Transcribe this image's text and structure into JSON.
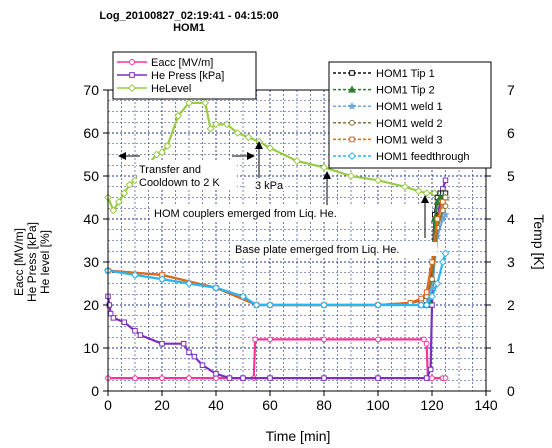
{
  "chart_data": {
    "type": "line",
    "title": "Log_20100827_02:19:41 - 04:15:00",
    "subtitle": "HOM1",
    "xlabel": "Time [min]",
    "ylabel_left": [
      "Eacc [MV/m]",
      "He Press [kPa]",
      "He level [%]"
    ],
    "ylabel_right": "Temp [K]",
    "xlim": [
      0,
      140
    ],
    "ylim_left": [
      0,
      70
    ],
    "ylim_right": [
      0,
      7
    ],
    "x_ticks": [
      "0",
      "20",
      "40",
      "60",
      "80",
      "100",
      "120",
      "140"
    ],
    "y_ticks_left": [
      "0",
      "10",
      "20",
      "30",
      "40",
      "50",
      "60",
      "70"
    ],
    "y_ticks_right": [
      "0",
      "1",
      "2",
      "3",
      "4",
      "5",
      "6",
      "7"
    ],
    "grid": true,
    "legend_left": {
      "placement": "top-left",
      "entries": [
        "Eacc [MV/m]",
        "He Press [kPa]",
        "HeLevel"
      ]
    },
    "legend_right": {
      "placement": "top-right",
      "entries": [
        "HOM1 Tip 1",
        "HOM1 Tip 2",
        "HOM1 weld 1",
        "HOM1 weld 2",
        "HOM1 weld 3",
        "HOM1 feedthrough"
      ]
    },
    "annotations": {
      "transfer": "Transfer and\nCooldown to 2 K",
      "press": "3 kPa",
      "couplers": "HOM couplers emerged from Liq. He.",
      "baseplate": "Base plate emerged from Liq. He."
    },
    "series": [
      {
        "name": "Eacc [MV/m]",
        "axis": "left",
        "color": "#ff3399",
        "marker": "circle",
        "x": [
          0,
          10,
          20,
          30,
          40,
          50,
          54,
          54.5,
          60,
          80,
          100,
          117,
          118,
          118.5,
          120,
          124,
          125
        ],
        "y": [
          3,
          3,
          3,
          3,
          3,
          3,
          3,
          12,
          12,
          12,
          12,
          12,
          11,
          3,
          3,
          3,
          3
        ]
      },
      {
        "name": "He Press [kPa]",
        "axis": "left",
        "color": "#7b2fbe",
        "marker": "square",
        "x": [
          0,
          0.5,
          1,
          2,
          6,
          10,
          12,
          20,
          28,
          30,
          32,
          35,
          40,
          45,
          50,
          60,
          80,
          100,
          118,
          119.5,
          120,
          121,
          122,
          123,
          124,
          125
        ],
        "y": [
          22,
          20,
          18,
          17,
          16,
          14,
          13,
          11,
          11,
          9,
          8,
          6,
          4,
          3,
          3,
          3,
          3,
          3,
          3,
          5,
          20,
          34,
          40,
          44,
          47,
          49
        ]
      },
      {
        "name": "HeLevel",
        "axis": "left",
        "color": "#99cc44",
        "marker": "diamond",
        "x": [
          0,
          2,
          4,
          6,
          8,
          10,
          14,
          18,
          20,
          22,
          26,
          30,
          36,
          38,
          40,
          44,
          48,
          52,
          56,
          60,
          70,
          80,
          90,
          100,
          110,
          115,
          118,
          121,
          124
        ],
        "y": [
          45,
          42,
          44,
          46,
          48,
          49,
          52,
          55,
          55.5,
          57,
          64,
          67,
          67,
          61,
          62,
          62,
          60,
          59,
          58,
          56.5,
          53.5,
          52,
          50,
          49,
          47.5,
          46.5,
          46,
          46,
          46
        ]
      },
      {
        "name": "HOM1 Tip 1",
        "axis": "right",
        "color": "#111111",
        "marker": "square-open",
        "x": [
          118,
          119,
          120,
          121,
          122,
          123,
          124,
          125
        ],
        "y": [
          2.0,
          2.1,
          2.8,
          4.1,
          4.5,
          4.6,
          4.6,
          4.6
        ]
      },
      {
        "name": "HOM1 Tip 2",
        "axis": "right",
        "color": "#2e7d32",
        "marker": "triangle",
        "x": [
          118,
          119,
          120,
          121,
          122,
          123,
          124,
          125
        ],
        "y": [
          2.0,
          2.1,
          2.6,
          4.0,
          4.4,
          4.5,
          4.5,
          4.5
        ]
      },
      {
        "name": "HOM1 weld 1",
        "axis": "right",
        "color": "#6fa8dc",
        "marker": "star",
        "x": [
          0,
          10,
          20,
          30,
          40,
          50,
          55,
          60,
          80,
          100,
          116,
          118,
          120,
          122,
          124,
          125
        ],
        "y": [
          2.8,
          2.7,
          2.6,
          2.5,
          2.4,
          2.2,
          2.0,
          2.0,
          2.0,
          2.0,
          2.0,
          2.0,
          2.4,
          3.6,
          4.0,
          4.1
        ]
      },
      {
        "name": "HOM1 weld 2",
        "axis": "right",
        "color": "#8b7536",
        "marker": "circle",
        "x": [
          0,
          20,
          40,
          55,
          60,
          80,
          100,
          112,
          116,
          118,
          120,
          122,
          124,
          125
        ],
        "y": [
          2.8,
          2.7,
          2.4,
          2.0,
          2.0,
          2.0,
          2.0,
          2.05,
          2.1,
          2.2,
          2.6,
          3.8,
          4.2,
          4.3
        ]
      },
      {
        "name": "HOM1 weld 3",
        "axis": "right",
        "color": "#e06a1a",
        "marker": "square",
        "x": [
          0,
          20,
          40,
          55,
          60,
          80,
          100,
          112,
          116,
          118,
          120,
          122,
          124,
          125
        ],
        "y": [
          2.8,
          2.7,
          2.4,
          2.0,
          2.0,
          2.0,
          2.0,
          2.05,
          2.15,
          2.3,
          3.0,
          4.0,
          4.4,
          4.5
        ]
      },
      {
        "name": "HOM1 feedthrough",
        "axis": "right",
        "color": "#29b6f6",
        "marker": "diamond",
        "x": [
          0,
          10,
          20,
          30,
          40,
          50,
          55,
          60,
          80,
          100,
          116,
          118,
          120,
          122,
          124,
          125
        ],
        "y": [
          2.8,
          2.7,
          2.6,
          2.5,
          2.4,
          2.2,
          2.0,
          2.0,
          2.0,
          2.0,
          2.0,
          2.0,
          2.2,
          2.5,
          3.0,
          3.2
        ]
      }
    ]
  }
}
